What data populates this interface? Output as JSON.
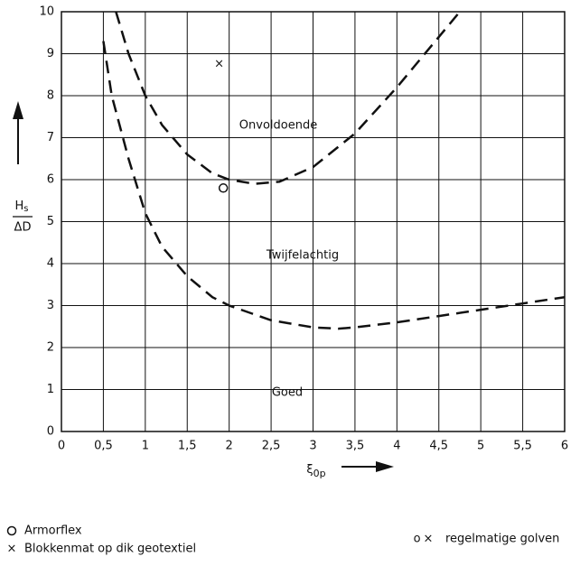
{
  "chart_data": {
    "type": "line",
    "x_label": {
      "symbol": "ξ",
      "subscript": "0p"
    },
    "y_label": {
      "numerator": {
        "symbol": "H",
        "subscript": "s"
      },
      "denominator": "ΔD"
    },
    "xlim": [
      0,
      6
    ],
    "ylim": [
      0,
      10
    ],
    "xticks": [
      0,
      {
        "value": 0.5,
        "label": "0,5"
      },
      1,
      {
        "value": 1.5,
        "label": "1,5"
      },
      2,
      {
        "value": 2.5,
        "label": "2,5"
      },
      3,
      {
        "value": 3.5,
        "label": "3,5"
      },
      4,
      {
        "value": 4.5,
        "label": "4,5"
      },
      5,
      {
        "value": 5.5,
        "label": "5,5"
      },
      6
    ],
    "yticks": [
      0,
      1,
      2,
      3,
      4,
      5,
      6,
      7,
      8,
      9,
      10
    ],
    "grid": true,
    "series": [
      {
        "color": "#111111",
        "dash": true,
        "x": [
          0.65,
          0.8,
          1.0,
          1.2,
          1.5,
          1.8,
          2.0,
          2.3,
          2.6,
          3.0,
          3.5,
          4.0,
          4.5,
          4.75
        ],
        "y": [
          10,
          9.0,
          8.0,
          7.3,
          6.6,
          6.15,
          6.0,
          5.9,
          5.95,
          6.3,
          7.1,
          8.2,
          9.4,
          10
        ]
      },
      {
        "color": "#111111",
        "dash": true,
        "x": [
          0.5,
          0.6,
          0.8,
          1.0,
          1.2,
          1.5,
          1.8,
          2.0,
          2.5,
          3.0,
          3.3,
          3.5,
          4.0,
          4.5,
          5.0,
          5.5,
          6.0
        ],
        "y": [
          9.3,
          8.0,
          6.5,
          5.2,
          4.4,
          3.7,
          3.2,
          3.0,
          2.65,
          2.48,
          2.45,
          2.48,
          2.6,
          2.75,
          2.9,
          3.05,
          3.2
        ]
      }
    ],
    "points": [
      {
        "name": "Armorflex",
        "marker": "o",
        "x": 1.93,
        "y": 5.8
      },
      {
        "name": "Blokkenmat op dik geotextiel",
        "marker": "×",
        "x": 1.88,
        "y": 8.75
      }
    ],
    "annotations": [
      "Onvoldoende",
      "Twijfelachtig",
      "Goed"
    ],
    "legend_note": {
      "markers": "o×",
      "label": "regelmatige golven"
    }
  }
}
